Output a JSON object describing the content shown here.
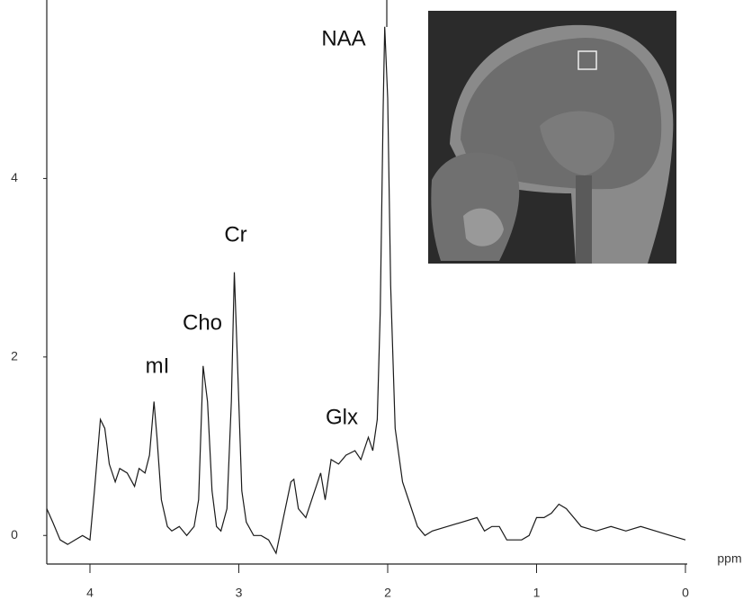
{
  "chart_data": {
    "type": "line",
    "x": [
      4.29,
      4.25,
      4.2,
      4.15,
      4.1,
      4.05,
      4.0,
      3.97,
      3.93,
      3.9,
      3.87,
      3.83,
      3.8,
      3.75,
      3.7,
      3.67,
      3.63,
      3.6,
      3.57,
      3.55,
      3.52,
      3.48,
      3.45,
      3.4,
      3.35,
      3.3,
      3.27,
      3.24,
      3.21,
      3.18,
      3.15,
      3.12,
      3.08,
      3.05,
      3.03,
      3.01,
      2.98,
      2.95,
      2.9,
      2.85,
      2.8,
      2.75,
      2.7,
      2.65,
      2.63,
      2.6,
      2.55,
      2.5,
      2.45,
      2.42,
      2.38,
      2.33,
      2.28,
      2.22,
      2.18,
      2.13,
      2.1,
      2.07,
      2.05,
      2.03,
      2.02,
      2.0,
      1.98,
      1.95,
      1.9,
      1.85,
      1.8,
      1.75,
      1.7,
      1.6,
      1.5,
      1.4,
      1.35,
      1.3,
      1.25,
      1.2,
      1.1,
      1.05,
      1.0,
      0.95,
      0.9,
      0.85,
      0.8,
      0.7,
      0.6,
      0.5,
      0.4,
      0.3,
      0.2,
      0.1,
      0.0
    ],
    "values": [
      0.3,
      0.15,
      -0.05,
      -0.1,
      -0.05,
      0.0,
      -0.05,
      0.5,
      1.3,
      1.2,
      0.8,
      0.6,
      0.75,
      0.7,
      0.55,
      0.75,
      0.7,
      0.9,
      1.5,
      1.1,
      0.4,
      0.1,
      0.05,
      0.1,
      0.0,
      0.1,
      0.4,
      1.9,
      1.5,
      0.5,
      0.1,
      0.05,
      0.3,
      1.5,
      2.95,
      2.0,
      0.5,
      0.15,
      0.0,
      0.0,
      -0.05,
      -0.2,
      0.2,
      0.6,
      0.63,
      0.3,
      0.2,
      0.45,
      0.7,
      0.4,
      0.85,
      0.8,
      0.9,
      0.95,
      0.85,
      1.1,
      0.95,
      1.3,
      2.5,
      4.8,
      5.7,
      4.9,
      2.8,
      1.2,
      0.6,
      0.35,
      0.1,
      0.0,
      0.05,
      0.1,
      0.15,
      0.2,
      0.05,
      0.1,
      0.1,
      -0.05,
      -0.05,
      0.0,
      0.2,
      0.2,
      0.25,
      0.35,
      0.3,
      0.1,
      0.05,
      0.1,
      0.05,
      0.1,
      0.05,
      0.0,
      -0.05
    ],
    "color": "#1a1a1a",
    "xlim": [
      4.29,
      0
    ],
    "xticks": [
      4,
      3,
      2,
      1,
      0
    ],
    "ylim": [
      -0.32,
      6
    ],
    "yticks": [
      0,
      2,
      4
    ],
    "x_label": "ppm",
    "annotations": [
      "NAA",
      "Cr",
      "Cho",
      "mI",
      "Glx"
    ]
  }
}
